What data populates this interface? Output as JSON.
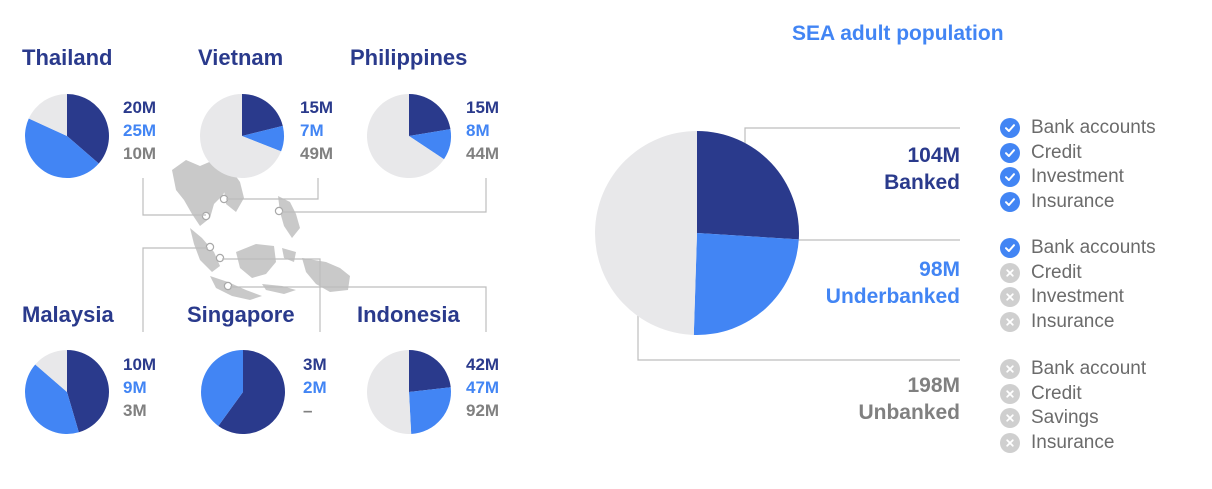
{
  "chart_data": [
    {
      "type": "pie",
      "title": "Thailand",
      "series": [
        {
          "values": [
            20,
            25,
            10
          ]
        }
      ],
      "value_labels": [
        "20M",
        "25M",
        "10M"
      ]
    },
    {
      "type": "pie",
      "title": "Vietnam",
      "series": [
        {
          "values": [
            15,
            7,
            49
          ]
        }
      ],
      "value_labels": [
        "15M",
        "7M",
        "49M"
      ]
    },
    {
      "type": "pie",
      "title": "Philippines",
      "series": [
        {
          "values": [
            15,
            8,
            44
          ]
        }
      ],
      "value_labels": [
        "15M",
        "8M",
        "44M"
      ]
    },
    {
      "type": "pie",
      "title": "Malaysia",
      "series": [
        {
          "values": [
            10,
            9,
            3
          ]
        }
      ],
      "value_labels": [
        "10M",
        "9M",
        "3M"
      ]
    },
    {
      "type": "pie",
      "title": "Singapore",
      "series": [
        {
          "values": [
            3,
            2,
            0
          ]
        }
      ],
      "value_labels": [
        "3M",
        "2M",
        "–"
      ]
    },
    {
      "type": "pie",
      "title": "Indonesia",
      "series": [
        {
          "values": [
            42,
            47,
            92
          ]
        }
      ],
      "value_labels": [
        "42M",
        "47M",
        "92M"
      ]
    },
    {
      "type": "pie",
      "title": "SEA adult population",
      "categories": [
        "Banked",
        "Underbanked",
        "Unbanked"
      ],
      "series": [
        {
          "values": [
            104,
            98,
            198
          ]
        }
      ],
      "value_labels": [
        "104M",
        "98M",
        "198M"
      ]
    }
  ],
  "colors": {
    "banked": "#2a3a8c",
    "underbanked": "#4285f4",
    "unbanked": "#e8e8ea",
    "unbanked_text": "#808080",
    "connector": "#bdbdbd",
    "map": "#c9c9c9"
  },
  "segments": [
    {
      "value": "104M",
      "label": "Banked",
      "features": [
        {
          "text": "Bank accounts",
          "icon": "check-icon"
        },
        {
          "text": "Credit",
          "icon": "check-icon"
        },
        {
          "text": "Investment",
          "icon": "check-icon"
        },
        {
          "text": "Insurance",
          "icon": "check-icon"
        }
      ]
    },
    {
      "value": "98M",
      "label": "Underbanked",
      "features": [
        {
          "text": "Bank accounts",
          "icon": "check-icon"
        },
        {
          "text": "Credit",
          "icon": "cross-icon"
        },
        {
          "text": "Investment",
          "icon": "cross-icon"
        },
        {
          "text": "Insurance",
          "icon": "cross-icon"
        }
      ]
    },
    {
      "value": "198M",
      "label": "Unbanked",
      "features": [
        {
          "text": "Bank account",
          "icon": "cross-icon"
        },
        {
          "text": "Credit",
          "icon": "cross-icon"
        },
        {
          "text": "Savings",
          "icon": "cross-icon"
        },
        {
          "text": "Insurance",
          "icon": "cross-icon"
        }
      ]
    }
  ]
}
